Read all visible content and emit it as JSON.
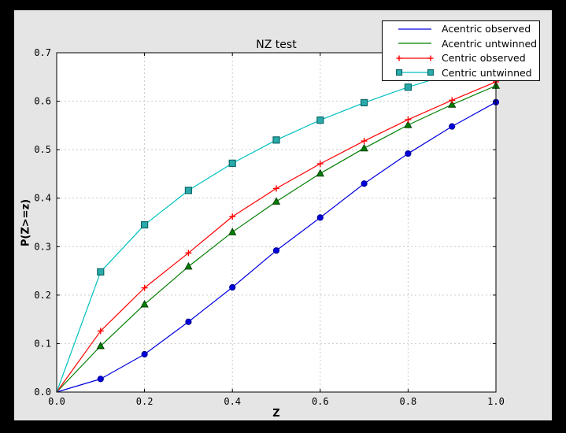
{
  "colors": {
    "window_bg": "#000000",
    "figure_bg": "#e5e5e5",
    "plot_bg": "#ffffff",
    "grid": "#c9c9c9",
    "axis": "#000000"
  },
  "chart_data": {
    "type": "line",
    "title": "NZ test",
    "xlabel": "Z",
    "ylabel": "P(Z>=z)",
    "xlim": [
      0.0,
      1.0
    ],
    "ylim": [
      0.0,
      0.7
    ],
    "xticks": [
      "0.0",
      "0.2",
      "0.4",
      "0.6",
      "0.8",
      "1.0"
    ],
    "yticks": [
      "0.0",
      "0.1",
      "0.2",
      "0.3",
      "0.4",
      "0.5",
      "0.6",
      "0.7"
    ],
    "grid": true,
    "legend_position": "upper right",
    "x": [
      0.0,
      0.1,
      0.2,
      0.3,
      0.4,
      0.5,
      0.6,
      0.7,
      0.8,
      0.9,
      1.0
    ],
    "series": [
      {
        "name": "Acentric observed",
        "color": "#0000e0",
        "marker": "circle",
        "marker_fill": "#0000dc",
        "marker_edge": "#000090",
        "legend_markers": false,
        "values": [
          0.0,
          0.027,
          0.078,
          0.145,
          0.216,
          0.292,
          0.36,
          0.43,
          0.492,
          0.548,
          0.598
        ]
      },
      {
        "name": "Acentric untwinned",
        "color": "#007f00",
        "marker": "triangle",
        "marker_fill": "#007f00",
        "marker_edge": "#003f00",
        "legend_markers": false,
        "values": [
          0.0,
          0.095,
          0.181,
          0.259,
          0.33,
          0.393,
          0.451,
          0.503,
          0.551,
          0.593,
          0.632
        ]
      },
      {
        "name": "Centric observed",
        "color": "#ff0000",
        "marker": "plus",
        "marker_fill": "#ff0000",
        "marker_edge": "#ff0000",
        "legend_markers": true,
        "values": [
          0.0,
          0.126,
          0.215,
          0.287,
          0.362,
          0.42,
          0.471,
          0.518,
          0.562,
          0.602,
          0.64
        ]
      },
      {
        "name": "Centric untwinned",
        "color": "#00c0c0",
        "marker": "square",
        "marker_fill": "#2aabab",
        "marker_edge": "#0d6868",
        "legend_markers": true,
        "values": [
          0.0,
          0.248,
          0.345,
          0.416,
          0.472,
          0.52,
          0.561,
          0.597,
          0.629,
          0.657,
          0.683
        ]
      }
    ]
  }
}
